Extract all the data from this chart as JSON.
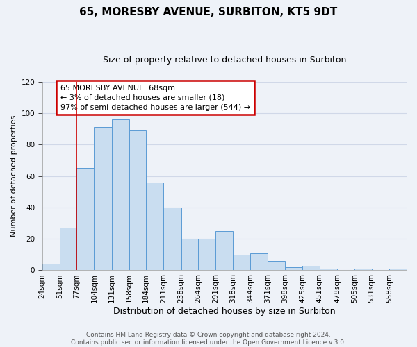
{
  "title": "65, MORESBY AVENUE, SURBITON, KT5 9DT",
  "subtitle": "Size of property relative to detached houses in Surbiton",
  "xlabel": "Distribution of detached houses by size in Surbiton",
  "ylabel": "Number of detached properties",
  "bin_edges": [
    24,
    51,
    77,
    104,
    131,
    158,
    184,
    211,
    238,
    264,
    291,
    318,
    344,
    371,
    398,
    425,
    451,
    478,
    505,
    531,
    558,
    585
  ],
  "counts": [
    4,
    27,
    65,
    91,
    96,
    89,
    56,
    40,
    20,
    20,
    25,
    10,
    11,
    6,
    2,
    3,
    1,
    0,
    1,
    0,
    1
  ],
  "bar_color": "#c9ddf0",
  "bar_edge_color": "#5b9bd5",
  "vertical_line_x": 77,
  "vertical_line_color": "#cc0000",
  "annotation_text": "65 MORESBY AVENUE: 68sqm\n← 3% of detached houses are smaller (18)\n97% of semi-detached houses are larger (544) →",
  "annotation_box_edge_color": "#cc0000",
  "annotation_box_fill": "#ffffff",
  "ylim": [
    0,
    120
  ],
  "yticks": [
    0,
    20,
    40,
    60,
    80,
    100,
    120
  ],
  "tick_labels": [
    "24sqm",
    "51sqm",
    "77sqm",
    "104sqm",
    "131sqm",
    "158sqm",
    "184sqm",
    "211sqm",
    "238sqm",
    "264sqm",
    "291sqm",
    "318sqm",
    "344sqm",
    "371sqm",
    "398sqm",
    "425sqm",
    "451sqm",
    "478sqm",
    "505sqm",
    "531sqm",
    "558sqm"
  ],
  "footer_line1": "Contains HM Land Registry data © Crown copyright and database right 2024.",
  "footer_line2": "Contains public sector information licensed under the Open Government Licence v.3.0.",
  "background_color": "#eef2f8",
  "grid_color": "#d0d8e8",
  "title_fontsize": 11,
  "subtitle_fontsize": 9,
  "xlabel_fontsize": 9,
  "ylabel_fontsize": 8,
  "tick_fontsize": 7.5,
  "footer_fontsize": 6.5
}
